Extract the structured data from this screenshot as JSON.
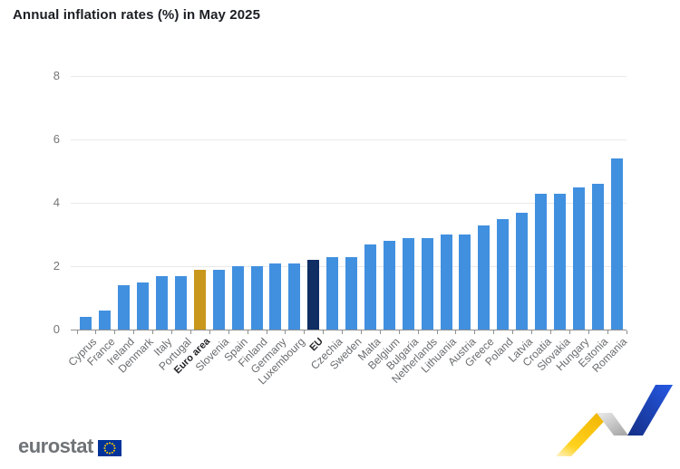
{
  "title": "Annual inflation rates (%) in May 2025",
  "logo": {
    "text": "eurostat"
  },
  "colors": {
    "bar_default": "#4190e0",
    "bar_euro_area": "#c9971b",
    "bar_eu": "#102d64",
    "gridline": "#e9e9ea",
    "axis": "#8f8f8f",
    "y_tick_label": "#757575",
    "x_label": "#696b6e",
    "x_label_emphasis": "#222326",
    "title_text": "#1b1e24",
    "eu_flag_blue": "#003399",
    "eu_flag_stars": "#ffcc00",
    "ribbon_yellow": "#ffc908",
    "ribbon_gray": "#c9c9c9",
    "ribbon_blue": "#1e4fc9"
  },
  "chart_data": {
    "type": "bar",
    "title": "Annual inflation rates (%) in May 2025",
    "xlabel": "",
    "ylabel": "",
    "ylim": [
      0,
      8
    ],
    "yticks": [
      0,
      2,
      4,
      6,
      8
    ],
    "grid": true,
    "legend": false,
    "categories": [
      "Cyprus",
      "France",
      "Ireland",
      "Denmark",
      "Italy",
      "Portugal",
      "Euro area",
      "Slovenia",
      "Spain",
      "Finland",
      "Germany",
      "Luxembourg",
      "EU",
      "Czechia",
      "Sweden",
      "Malta",
      "Belgium",
      "Bulgaria",
      "Netherlands",
      "Lithuania",
      "Austria",
      "Greece",
      "Poland",
      "Latvia",
      "Croatia",
      "Slovakia",
      "Hungary",
      "Estonia",
      "Romania"
    ],
    "values": [
      0.4,
      0.6,
      1.4,
      1.5,
      1.7,
      1.7,
      1.9,
      1.9,
      2.0,
      2.0,
      2.1,
      2.1,
      2.2,
      2.3,
      2.3,
      2.7,
      2.8,
      2.9,
      2.9,
      3.0,
      3.0,
      3.3,
      3.5,
      3.7,
      4.3,
      4.3,
      4.5,
      4.6,
      5.4
    ],
    "emphasized_categories": [
      "Euro area",
      "EU"
    ]
  }
}
